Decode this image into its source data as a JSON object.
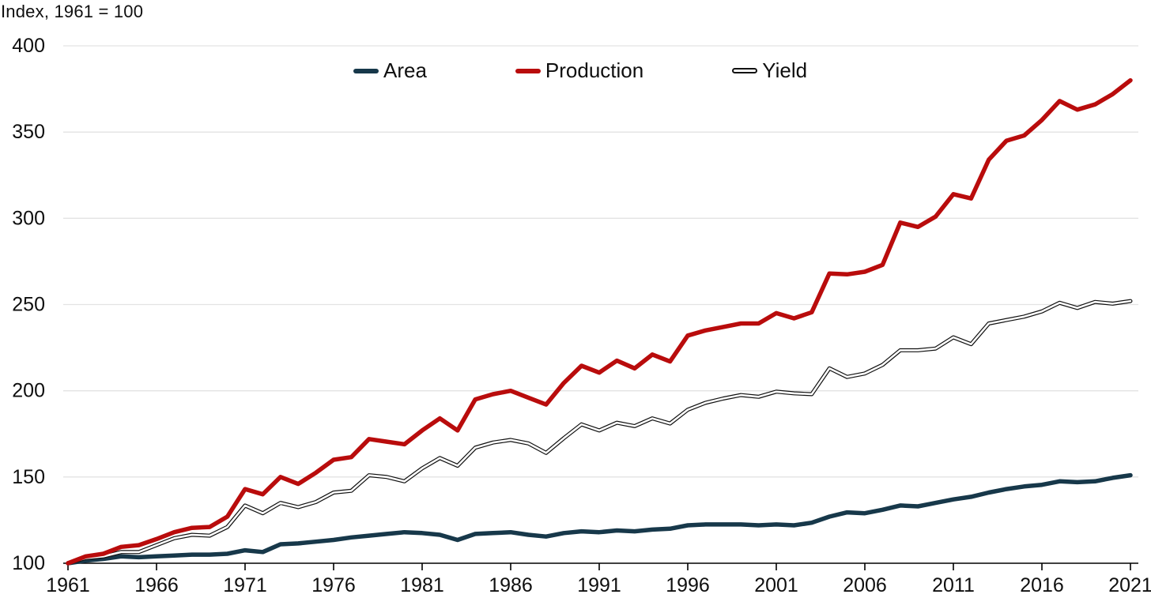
{
  "chart_data": {
    "type": "line",
    "title": "Index, 1961 = 100",
    "xlabel": "",
    "ylabel": "",
    "x_start": 1961,
    "x_end": 2021,
    "x_ticks": [
      1961,
      1966,
      1971,
      1976,
      1981,
      1986,
      1991,
      1996,
      2001,
      2006,
      2011,
      2016,
      2021
    ],
    "y_ticks": [
      100,
      150,
      200,
      250,
      300,
      350,
      400
    ],
    "ylim": [
      100,
      400
    ],
    "grid": "horizontal",
    "legend_position": "top-center",
    "background_color": "#ffffff",
    "grid_color": "#e3e3e3",
    "axis_color": "#000000",
    "text_color": "#0f0f0f",
    "series": [
      {
        "name": "Area",
        "color": "#17384a",
        "style": "solid",
        "values": [
          100,
          101.5,
          102.5,
          104,
          103.5,
          104,
          104.5,
          105,
          105,
          105.5,
          107.5,
          106.5,
          111,
          111.5,
          112.5,
          113.5,
          115,
          116,
          117,
          118,
          117.5,
          116.5,
          113.5,
          117,
          117.5,
          118,
          116.5,
          115.5,
          117.5,
          118.5,
          118,
          119,
          118.5,
          119.5,
          120,
          122,
          122.5,
          122.5,
          122.5,
          122,
          122.5,
          122,
          123.5,
          127,
          129.5,
          129,
          131,
          133.5,
          133,
          135,
          137,
          138.5,
          141,
          143,
          144.5,
          145.5,
          147.5,
          147,
          147.5,
          149.5,
          151
        ]
      },
      {
        "name": "Production",
        "color": "#b90c0c",
        "style": "solid",
        "values": [
          100,
          104,
          105.5,
          109.5,
          110.5,
          114,
          118,
          120.5,
          121,
          127,
          143,
          140,
          150,
          146,
          152.5,
          160,
          161.5,
          172,
          170.5,
          169,
          177,
          184,
          177,
          195,
          198,
          200,
          196,
          192,
          204.5,
          214.5,
          210.5,
          217.5,
          213,
          221,
          217,
          232,
          235,
          237,
          239,
          239,
          245,
          242,
          245.5,
          268,
          267.5,
          269,
          273,
          297.5,
          295,
          301,
          314,
          311.5,
          334,
          345,
          348,
          357,
          368,
          363,
          366,
          372,
          380
        ]
      },
      {
        "name": "Yield",
        "color": "#111111",
        "style": "outlined-white",
        "values": [
          100,
          103,
          104,
          106.5,
          106.5,
          110.5,
          114.5,
          116.5,
          116,
          121,
          133.5,
          129,
          135,
          132.5,
          135.5,
          141,
          142,
          151,
          150,
          147.5,
          155,
          161,
          156.5,
          167,
          170,
          171.5,
          169.5,
          164,
          172.5,
          180.5,
          177,
          181.5,
          179.5,
          184,
          181,
          189,
          193,
          195.5,
          197.5,
          196.5,
          199.5,
          198.5,
          198,
          213,
          208,
          210,
          215,
          223.5,
          223.5,
          224.5,
          231,
          227,
          239,
          241,
          243,
          246,
          251,
          248,
          251.5,
          250.5,
          252
        ]
      }
    ]
  }
}
